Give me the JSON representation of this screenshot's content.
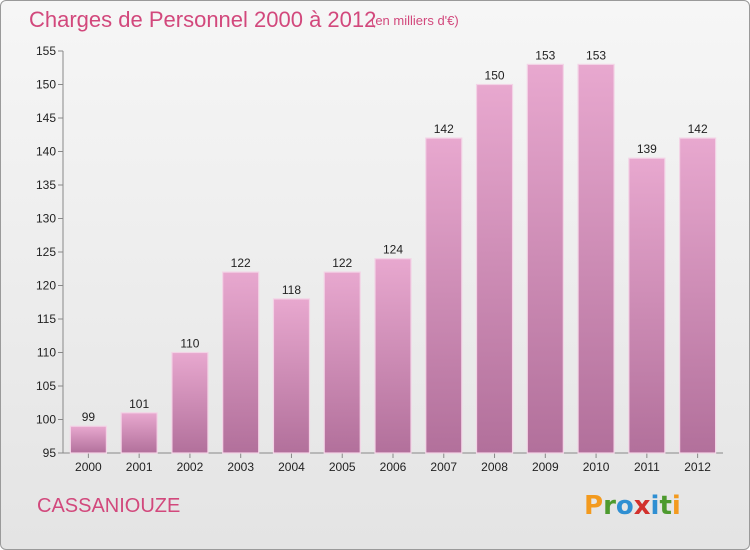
{
  "header": {
    "title": "Charges de Personnel 2000 à 2012",
    "subtitle": "(en milliers d'€)"
  },
  "footer": {
    "commune": "CASSANIOUZE",
    "logo_letters": [
      "P",
      "r",
      "o",
      "x",
      "i",
      "t",
      "i"
    ]
  },
  "colors": {
    "title": "#d2487c",
    "bar_top": "#e8a8cf",
    "bar_bottom": "#b2709b",
    "logo": [
      "#f39a1e",
      "#4d9a2e",
      "#2f8fd2",
      "#d2302c",
      "#2f8fd2",
      "#4d9a2e",
      "#f39a1e"
    ]
  },
  "chart_data": {
    "type": "bar",
    "categories": [
      "2000",
      "2001",
      "2002",
      "2003",
      "2004",
      "2005",
      "2006",
      "2007",
      "2008",
      "2009",
      "2010",
      "2011",
      "2012"
    ],
    "values": [
      99,
      101,
      110,
      122,
      118,
      122,
      124,
      142,
      150,
      153,
      153,
      139,
      142
    ],
    "value_labels": [
      "99",
      "101",
      "110",
      "122",
      "118",
      "122",
      "124",
      "142",
      "150",
      "153",
      "153",
      "139",
      "142"
    ],
    "title": "Charges de Personnel 2000 à 2012",
    "xlabel": "",
    "ylabel": "",
    "ylim": [
      95,
      155
    ],
    "yticks": [
      95,
      100,
      105,
      110,
      115,
      120,
      125,
      130,
      135,
      140,
      145,
      150,
      155
    ],
    "ytick_labels": [
      "95",
      "100",
      "105",
      "110",
      "115",
      "120",
      "125",
      "130",
      "135",
      "140",
      "145",
      "150",
      "155"
    ],
    "grid": false,
    "legend": "none"
  }
}
